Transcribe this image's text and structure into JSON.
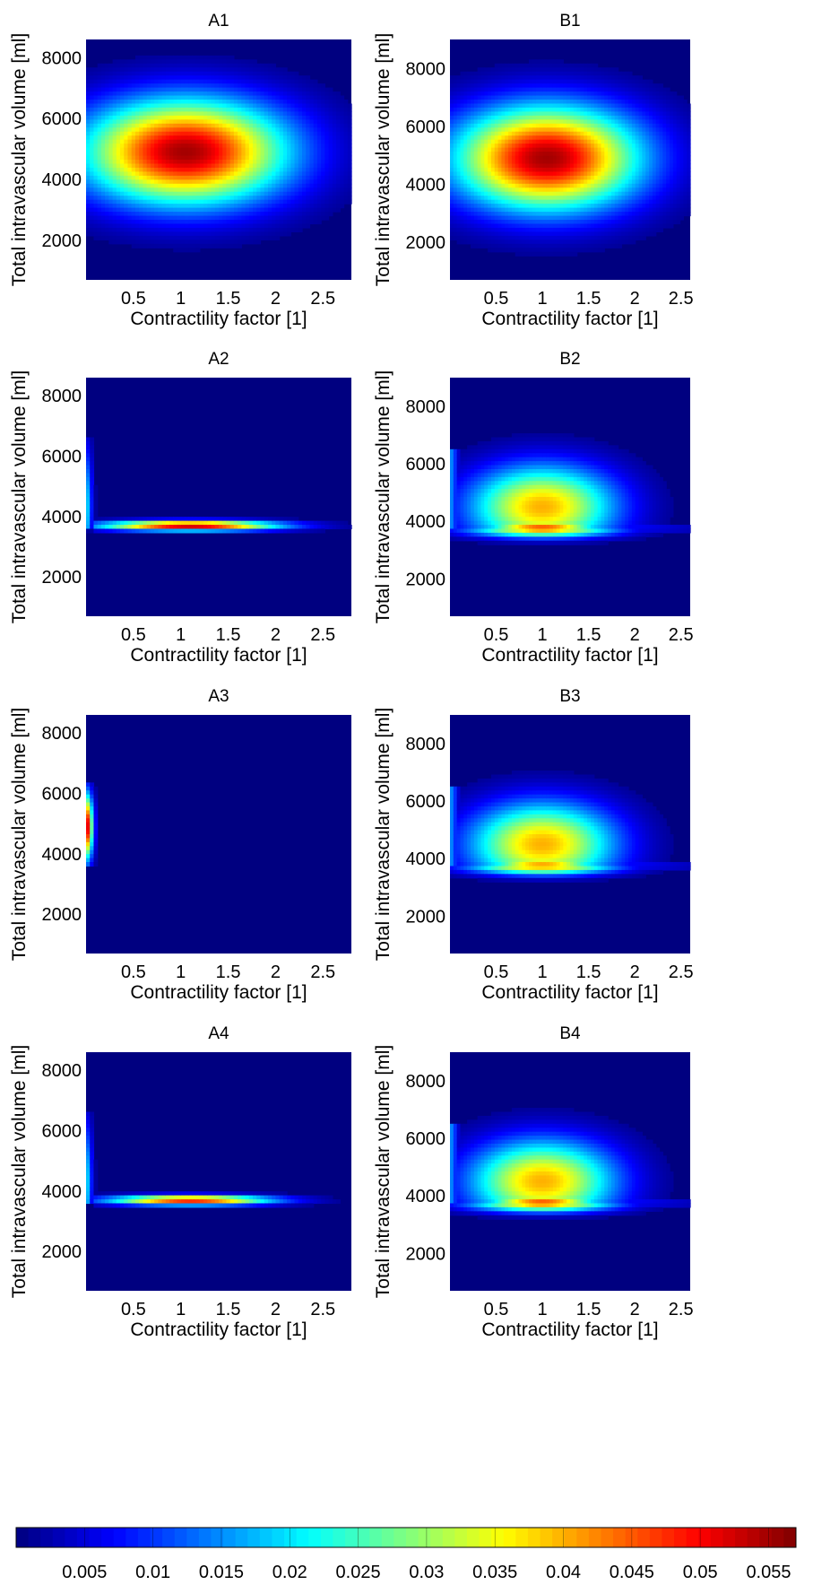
{
  "chart_data": [
    {
      "type": "heatmap",
      "title": "A1",
      "xlabel": "Contractility factor [1]",
      "ylabel": "Total intravascular volume [ml]",
      "x_ticks": [
        0.5,
        1,
        1.5,
        2,
        2.5
      ],
      "x_tick_labels": [
        "0.5",
        "1",
        "1.5",
        "2",
        "2.5"
      ],
      "y_ticks": [
        2000,
        4000,
        6000,
        8000
      ],
      "y_tick_labels": [
        "2000",
        "4000",
        "6000",
        "8000"
      ],
      "xlim": [
        0,
        2.8
      ],
      "ylim": [
        700,
        8600
      ],
      "pattern": "ellipse",
      "peak": {
        "x": 1.05,
        "y": 4900,
        "value": 0.055
      },
      "spread": {
        "x": 0.75,
        "y": 1200
      }
    },
    {
      "type": "heatmap",
      "title": "B1",
      "xlabel": "Contractility factor [1]",
      "ylabel": "Total intravascular volume [ml]",
      "x_ticks": [
        0.5,
        1,
        1.5,
        2,
        2.5
      ],
      "x_tick_labels": [
        "0.5",
        "1",
        "1.5",
        "2",
        "2.5"
      ],
      "y_ticks": [
        2000,
        4000,
        6000,
        8000
      ],
      "y_tick_labels": [
        "2000",
        "4000",
        "6000",
        "8000"
      ],
      "xlim": [
        0,
        2.6
      ],
      "ylim": [
        700,
        9000
      ],
      "pattern": "ellipse",
      "peak": {
        "x": 1.05,
        "y": 4900,
        "value": 0.055
      },
      "spread": {
        "x": 0.7,
        "y": 1250
      }
    },
    {
      "type": "heatmap",
      "title": "A2",
      "xlabel": "Contractility factor [1]",
      "ylabel": "Total intravascular volume [ml]",
      "x_ticks": [
        0.5,
        1,
        1.5,
        2,
        2.5
      ],
      "x_tick_labels": [
        "0.5",
        "1",
        "1.5",
        "2",
        "2.5"
      ],
      "y_ticks": [
        2000,
        4000,
        6000,
        8000
      ],
      "y_tick_labels": [
        "2000",
        "4000",
        "6000",
        "8000"
      ],
      "xlim": [
        0,
        2.8
      ],
      "ylim": [
        700,
        8600
      ],
      "pattern": "narrow-band",
      "band_y": 3700,
      "band_peak_x": 1.1,
      "band_x_spread": 0.65,
      "value_max": 0.055
    },
    {
      "type": "heatmap",
      "title": "B2",
      "xlabel": "Contractility factor [1]",
      "ylabel": "Total intravascular volume [ml]",
      "x_ticks": [
        0.5,
        1,
        1.5,
        2,
        2.5
      ],
      "x_tick_labels": [
        "0.5",
        "1",
        "1.5",
        "2",
        "2.5"
      ],
      "y_ticks": [
        2000,
        4000,
        6000,
        8000
      ],
      "y_tick_labels": [
        "2000",
        "4000",
        "6000",
        "8000"
      ],
      "xlim": [
        0,
        2.6
      ],
      "ylim": [
        700,
        9000
      ],
      "pattern": "band-with-cloud",
      "band_y": 3750,
      "band_peak_x": 1.0,
      "value_max": 0.055
    },
    {
      "type": "heatmap",
      "title": "A3",
      "xlabel": "Contractility factor [1]",
      "ylabel": "Total intravascular volume [ml]",
      "x_ticks": [
        0.5,
        1,
        1.5,
        2,
        2.5
      ],
      "x_tick_labels": [
        "0.5",
        "1",
        "1.5",
        "2",
        "2.5"
      ],
      "y_ticks": [
        2000,
        4000,
        6000,
        8000
      ],
      "y_tick_labels": [
        "2000",
        "4000",
        "6000",
        "8000"
      ],
      "xlim": [
        0,
        2.8
      ],
      "ylim": [
        700,
        8600
      ],
      "pattern": "left-edge",
      "edge_y_range": [
        3600,
        6400
      ],
      "edge_peak_y": 4900,
      "value_max": 0.055
    },
    {
      "type": "heatmap",
      "title": "B3",
      "xlabel": "Contractility factor [1]",
      "ylabel": "Total intravascular volume [ml]",
      "x_ticks": [
        0.5,
        1,
        1.5,
        2,
        2.5
      ],
      "x_tick_labels": [
        "0.5",
        "1",
        "1.5",
        "2",
        "2.5"
      ],
      "y_ticks": [
        2000,
        4000,
        6000,
        8000
      ],
      "y_tick_labels": [
        "2000",
        "4000",
        "6000",
        "8000"
      ],
      "xlim": [
        0,
        2.6
      ],
      "ylim": [
        700,
        9000
      ],
      "pattern": "band-with-cloud",
      "band_y": 3750,
      "band_peak_x": 1.0,
      "value_max": 0.05
    },
    {
      "type": "heatmap",
      "title": "A4",
      "xlabel": "Contractility factor [1]",
      "ylabel": "Total intravascular volume [ml]",
      "x_ticks": [
        0.5,
        1,
        1.5,
        2,
        2.5
      ],
      "x_tick_labels": [
        "0.5",
        "1",
        "1.5",
        "2",
        "2.5"
      ],
      "y_ticks": [
        2000,
        4000,
        6000,
        8000
      ],
      "y_tick_labels": [
        "2000",
        "4000",
        "6000",
        "8000"
      ],
      "xlim": [
        0,
        2.8
      ],
      "ylim": [
        700,
        8600
      ],
      "pattern": "narrow-band",
      "band_y": 3700,
      "band_peak_x": 1.1,
      "band_x_spread": 0.6,
      "value_max": 0.05
    },
    {
      "type": "heatmap",
      "title": "B4",
      "xlabel": "Contractility factor [1]",
      "ylabel": "Total intravascular volume [ml]",
      "x_ticks": [
        0.5,
        1,
        1.5,
        2,
        2.5
      ],
      "x_tick_labels": [
        "0.5",
        "1",
        "1.5",
        "2",
        "2.5"
      ],
      "y_ticks": [
        2000,
        4000,
        6000,
        8000
      ],
      "y_tick_labels": [
        "2000",
        "4000",
        "6000",
        "8000"
      ],
      "xlim": [
        0,
        2.6
      ],
      "ylim": [
        700,
        9000
      ],
      "pattern": "band-with-cloud",
      "band_y": 3750,
      "band_peak_x": 1.0,
      "value_max": 0.055
    }
  ],
  "colorbar": {
    "colormap": "jet",
    "range": [
      0,
      0.057
    ],
    "ticks": [
      0.005,
      0.01,
      0.015,
      0.02,
      0.025,
      0.03,
      0.035,
      0.04,
      0.045,
      0.05,
      0.055
    ],
    "tick_labels": [
      "0.005",
      "0.01",
      "0.015",
      "0.02",
      "0.025",
      "0.03",
      "0.035",
      "0.04",
      "0.045",
      "0.05",
      "0.055"
    ]
  }
}
